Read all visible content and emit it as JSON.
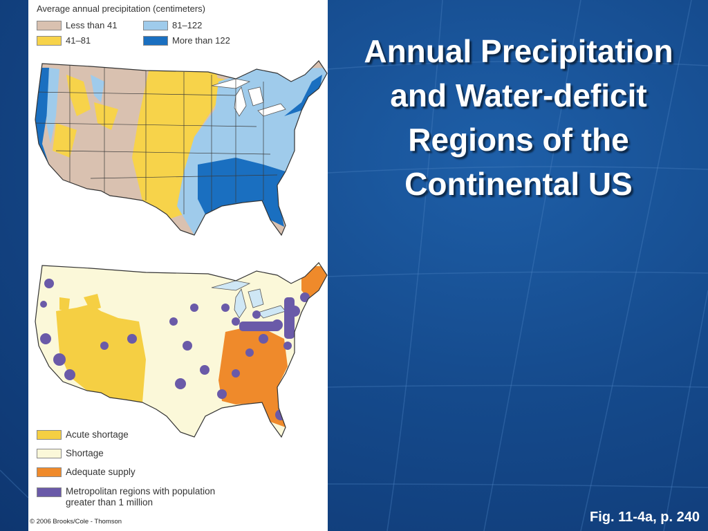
{
  "slide": {
    "title": "Annual Precipitation and Water-deficit Regions of the Continental US",
    "figure_reference": "Fig. 11-4a, p. 240"
  },
  "colors": {
    "background": "#154a8c",
    "less_than_41": "#d9c1b0",
    "41_81": "#f7d34a",
    "81_122": "#9fcbeb",
    "more_than_122": "#1a6fc0",
    "acute_shortage": "#f5cf43",
    "shortage": "#fbf8d9",
    "adequate_supply": "#ef8a2b",
    "metro": "#6a5aa8",
    "water": "#cfe7f5"
  },
  "precipitation_map": {
    "legend_title": "Average annual precipitation (centimeters)",
    "legend": [
      {
        "label": "Less than 41",
        "color": "#d9c1b0"
      },
      {
        "label": "41–81",
        "color": "#f7d34a"
      },
      {
        "label": "81–122",
        "color": "#9fcbeb"
      },
      {
        "label": "More than 122",
        "color": "#1a6fc0"
      }
    ]
  },
  "water_deficit_map": {
    "legend": [
      {
        "label": "Acute shortage",
        "color": "#f5cf43"
      },
      {
        "label": "Shortage",
        "color": "#fbf8d9"
      },
      {
        "label": "Adequate supply",
        "color": "#ef8a2b"
      },
      {
        "label_line1": "Metropolitan regions with population",
        "label_line2": "greater than 1 million",
        "color": "#6a5aa8"
      }
    ]
  },
  "copyright": "© 2006 Brooks/Cole - Thomson"
}
